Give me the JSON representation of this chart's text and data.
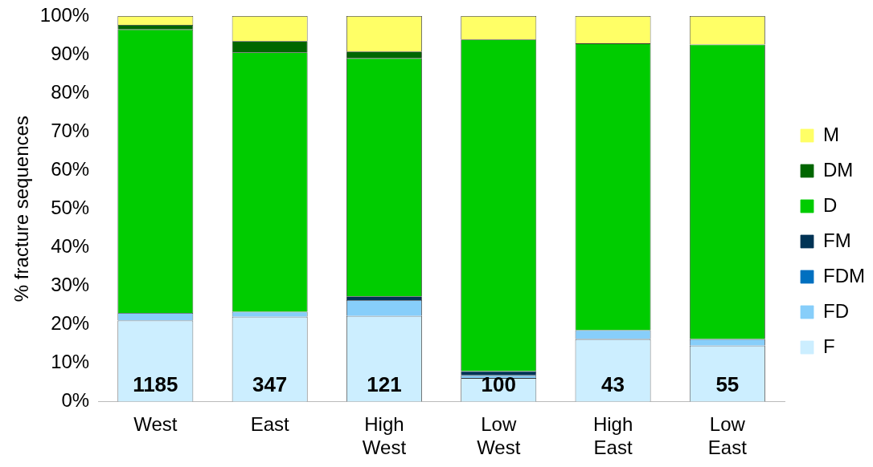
{
  "chart_data": {
    "type": "bar",
    "stacked": true,
    "ylabel": "% fracture sequences",
    "categories": [
      "West",
      "East",
      "High West",
      "Low West",
      "High East",
      "Low East"
    ],
    "series": [
      {
        "name": "F",
        "color": "#cceeff",
        "values": [
          21,
          22,
          22.2,
          6.1,
          16.2,
          14.5
        ]
      },
      {
        "name": "FD",
        "color": "#87cefa",
        "values": [
          2,
          1.3,
          4.1,
          0.7,
          2.3,
          1.7
        ]
      },
      {
        "name": "FDM",
        "color": "#0070c0",
        "values": [
          0,
          0,
          0,
          0,
          0,
          0
        ]
      },
      {
        "name": "FM",
        "color": "#003355",
        "values": [
          0,
          0,
          1,
          1.1,
          0,
          0
        ]
      },
      {
        "name": "D",
        "color": "#00cc00",
        "values": [
          73.5,
          67.3,
          61.8,
          86,
          74.4,
          76.4
        ]
      },
      {
        "name": "DM",
        "color": "#006600",
        "values": [
          1.2,
          2.9,
          1.7,
          0,
          0,
          0
        ]
      },
      {
        "name": "M",
        "color": "#ffff66",
        "values": [
          2.3,
          6.5,
          9.2,
          6.1,
          7.1,
          7.4
        ]
      }
    ],
    "ylim": [
      0,
      100
    ],
    "yticks": [
      {
        "value": 0,
        "label": "0%"
      },
      {
        "value": 10,
        "label": "10%"
      },
      {
        "value": 20,
        "label": "20%"
      },
      {
        "value": 30,
        "label": "30%"
      },
      {
        "value": 40,
        "label": "40%"
      },
      {
        "value": 50,
        "label": "50%"
      },
      {
        "value": 60,
        "label": "60%"
      },
      {
        "value": 70,
        "label": "70%"
      },
      {
        "value": 80,
        "label": "80%"
      },
      {
        "value": 90,
        "label": "90%"
      },
      {
        "value": 100,
        "label": "100%"
      }
    ],
    "legend": "right",
    "annotations": [
      "1185",
      "347",
      "121",
      "100",
      "43",
      "55"
    ]
  }
}
